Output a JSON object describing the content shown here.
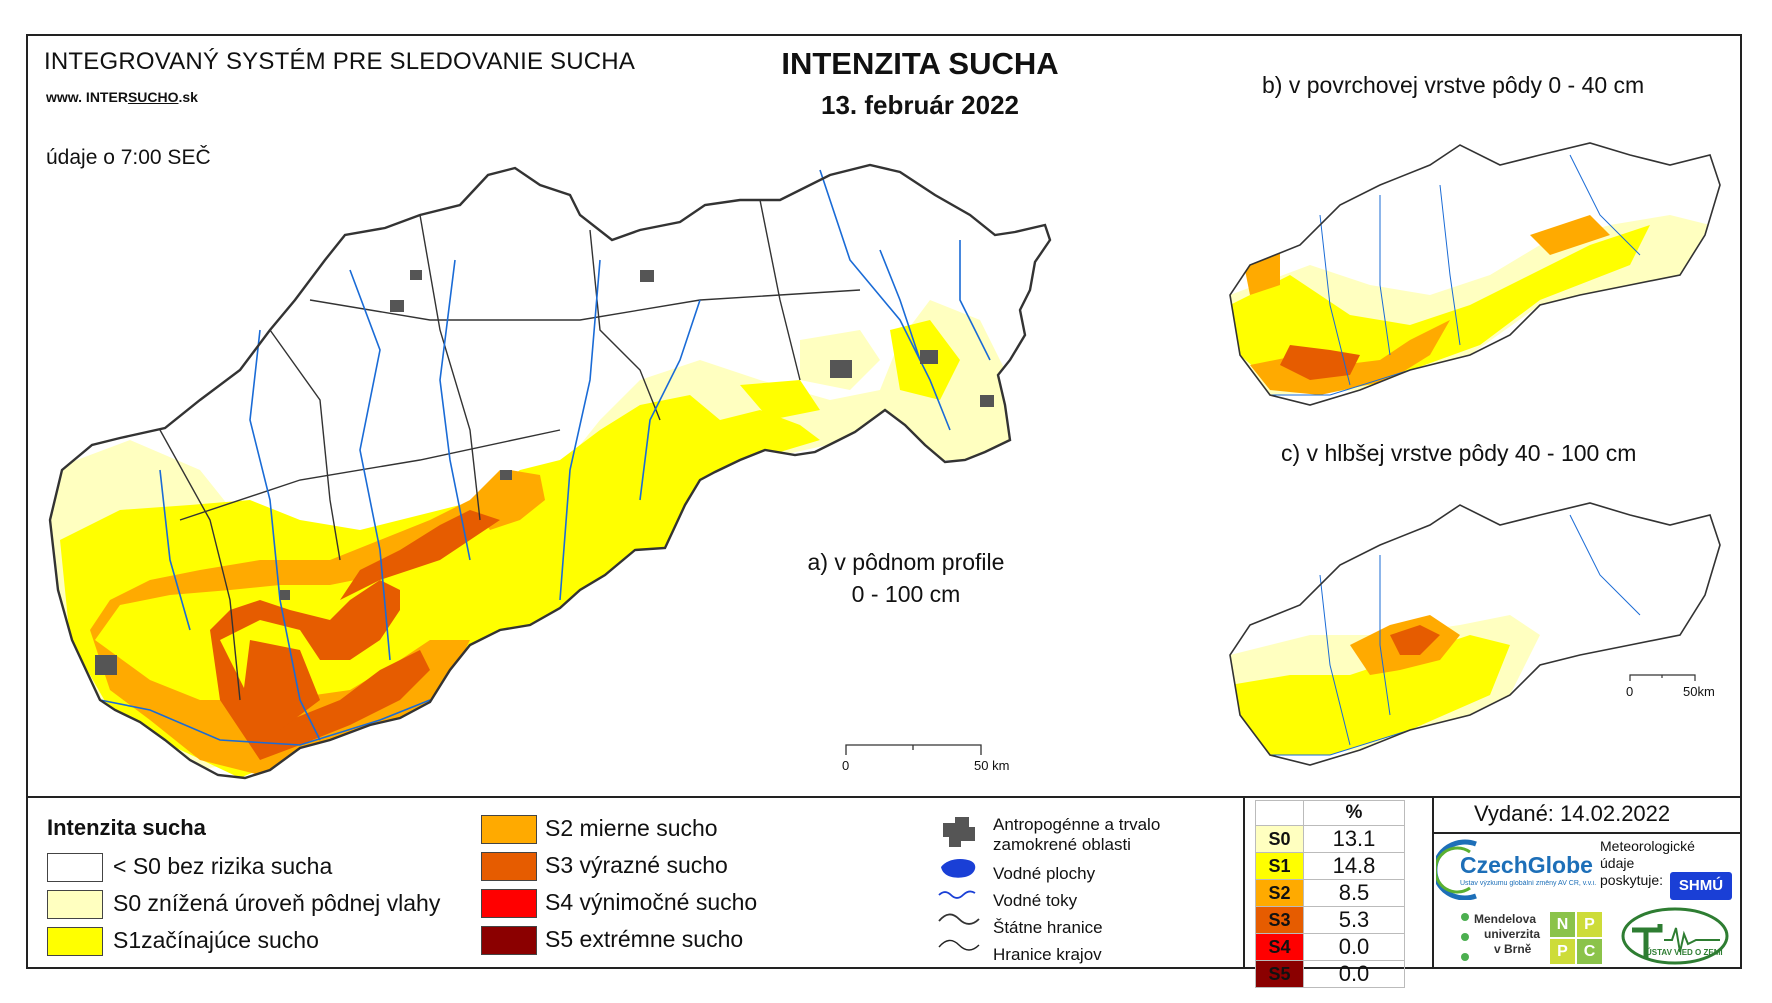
{
  "header": {
    "system_title": "INTEGROVANÝ SYSTÉM PRE SLEDOVANIE SUCHA",
    "website_prefix": "www. INTER",
    "website_mid": "SUCHO",
    "website_suffix": ".sk",
    "data_time": "údaje o 7:00 SEČ"
  },
  "title": {
    "main": "INTENZITA SUCHA",
    "date": "13. február 2022"
  },
  "maps": {
    "a_label_line1": "a) v pôdnom profile",
    "a_label_line2": "0 - 100 cm",
    "b_label": "b) v povrchovej vrstve pôdy 0 - 40 cm",
    "c_label": "c) v hlbšej vrstve pôdy 40 - 100 cm",
    "scale_main_start": "0",
    "scale_main_end": "50 km",
    "scale_small_start": "0",
    "scale_small_end": "50km"
  },
  "legend": {
    "title": "Intenzita sucha",
    "classes": [
      {
        "label": "< S0 bez rizika sucha",
        "color": "#ffffff"
      },
      {
        "label": "S0 znížená úroveň pôdnej vlahy",
        "color": "#ffffc0"
      },
      {
        "label": "S1začínajúce sucho",
        "color": "#ffff00"
      },
      {
        "label": "S2 mierne sucho",
        "color": "#ffaa00"
      },
      {
        "label": "S3 výrazné sucho",
        "color": "#e65c00"
      },
      {
        "label": "S4 výnimočné sucho",
        "color": "#ff0000"
      },
      {
        "label": "S5 extrémne sucho",
        "color": "#8b0000"
      }
    ],
    "symbols": {
      "urban": "Antropogénne a trvalo",
      "urban2": "zamokrené oblasti",
      "water_bodies": "Vodné plochy",
      "rivers": "Vodné toky",
      "state_border": "Štátne hranice",
      "region_border": "Hranice krajov"
    }
  },
  "percent_table": {
    "header": "%",
    "rows": [
      {
        "code": "S0",
        "value": "13.1",
        "color": "#ffffc0"
      },
      {
        "code": "S1",
        "value": "14.8",
        "color": "#ffff00"
      },
      {
        "code": "S2",
        "value": "8.5",
        "color": "#ffaa00"
      },
      {
        "code": "S3",
        "value": "5.3",
        "color": "#e65c00"
      },
      {
        "code": "S4",
        "value": "0.0",
        "color": "#ff0000"
      },
      {
        "code": "S5",
        "value": "0.0",
        "color": "#8b0000"
      }
    ]
  },
  "footer": {
    "issued": "Vydané: 14.02.2022",
    "czechglobe": "CzechGlobe",
    "czechglobe_sub": "Ústav výzkumu globální změny AV ČR, v.v.i.",
    "meteo_line1": "Meteorologické",
    "meteo_line2": "údaje",
    "meteo_line3": "poskytuje:",
    "shmu": "SHMÚ",
    "mendel_1": "Mendelova",
    "mendel_2": "univerzita",
    "mendel_3": "v Brně",
    "nppc_n": "N",
    "nppc_p1": "P",
    "nppc_p2": "P",
    "nppc_c": "C",
    "uvz": "ÚSTAV VIED O ZEMI"
  }
}
